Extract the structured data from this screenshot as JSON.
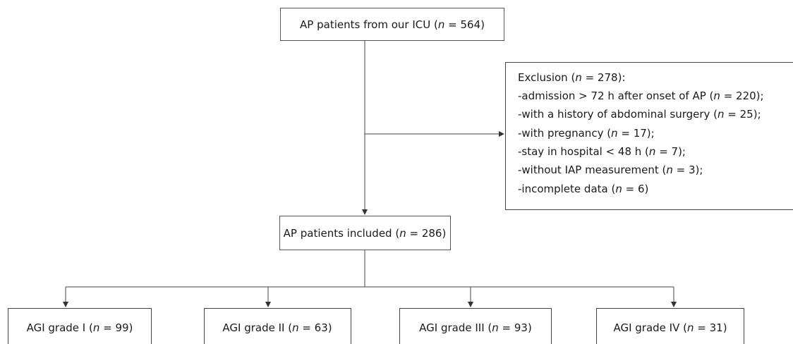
{
  "source": {
    "label": "AP patients from our ICU (n = 564)"
  },
  "exclusion": {
    "title": "Exclusion (n = 278):",
    "items": [
      "-admission > 72 h after onset of AP (n = 220);",
      "-with a history of abdominal surgery (n = 25);",
      "-with pregnancy (n = 17);",
      "-stay in hospital < 48 h (n = 7);",
      "-without IAP measurement (n = 3);",
      "-incomplete data (n = 6)"
    ]
  },
  "included": {
    "label": "AP patients included (n = 286)"
  },
  "groups": [
    {
      "label": "AGI grade I (n = 99)"
    },
    {
      "label": "AGI grade II (n = 63)"
    },
    {
      "label": "AGI grade III (n = 93)"
    },
    {
      "label": "AGI grade IV (n = 31)"
    }
  ]
}
